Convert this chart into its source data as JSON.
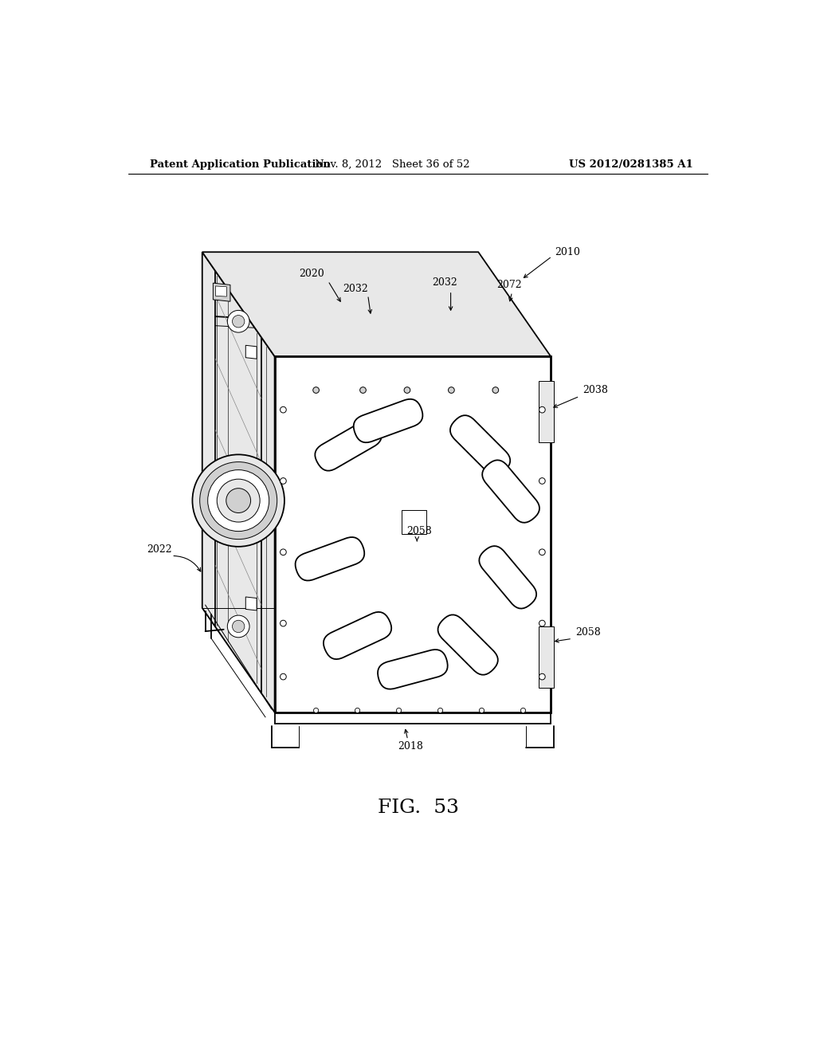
{
  "bg_color": "#ffffff",
  "header_left": "Patent Application Publication",
  "header_center": "Nov. 8, 2012   Sheet 36 of 52",
  "header_right": "US 2012/0281385 A1",
  "figure_label": "FIG.  53",
  "lw_heavy": 2.0,
  "lw_med": 1.3,
  "lw_thin": 0.7,
  "lw_xtra": 0.5,
  "box_color": "#ffffff",
  "shade_light": "#f0f0f0",
  "shade_med": "#d8d8d8",
  "shade_dark": "#b0b0b0"
}
